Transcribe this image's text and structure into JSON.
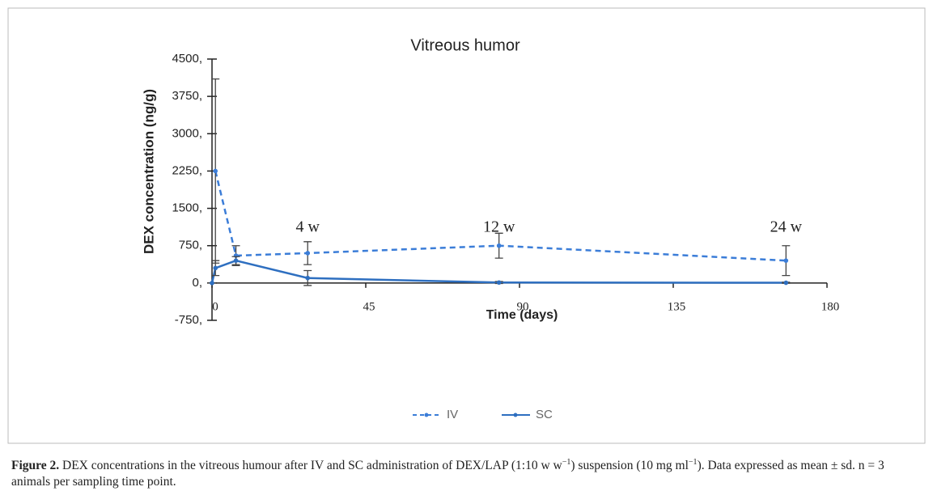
{
  "chart_data": {
    "type": "line",
    "title": "Vitreous humor",
    "x_label": "Time (days)",
    "y_label": "DEX concentration (ng/g)",
    "xlim": [
      0,
      180
    ],
    "xticks": [
      0,
      45,
      90,
      135,
      180
    ],
    "ylim": [
      -750,
      4500
    ],
    "yticks": [
      {
        "value": -750,
        "label": "-750,"
      },
      {
        "value": 0,
        "label": "0,"
      },
      {
        "value": 750,
        "label": "750,"
      },
      {
        "value": 1500,
        "label": "1500,"
      },
      {
        "value": 2250,
        "label": "2250,"
      },
      {
        "value": 3000,
        "label": "3000,"
      },
      {
        "value": 3750,
        "label": "3750,"
      },
      {
        "value": 4500,
        "label": "4500,"
      }
    ],
    "annotations": [
      {
        "text": "4 w",
        "x": 28
      },
      {
        "text": "12 w",
        "x": 84
      },
      {
        "text": "24 w",
        "x": 168
      }
    ],
    "series": [
      {
        "name": "IV",
        "color": "#3b7dd8",
        "dashed": true,
        "x": [
          1,
          7,
          28,
          84,
          168
        ],
        "values": [
          2250,
          550,
          600,
          750,
          450
        ],
        "errors": [
          1850,
          200,
          230,
          250,
          300
        ]
      },
      {
        "name": "SC",
        "color": "#2e6fc0",
        "dashed": false,
        "x": [
          0,
          1,
          7,
          28,
          84,
          168
        ],
        "values": [
          0,
          300,
          450,
          100,
          10,
          5
        ],
        "errors": [
          0,
          150,
          80,
          150,
          20,
          10
        ]
      }
    ],
    "caption": {
      "label": "Figure 2.",
      "parts": [
        " DEX concentrations in the vitreous humour after IV and SC administration of DEX/LAP (1:10 w w",
        "−1",
        ") suspension (10 mg ml",
        "−1",
        "). Data expressed as mean ± sd. n = 3 animals per sampling time point."
      ]
    }
  }
}
